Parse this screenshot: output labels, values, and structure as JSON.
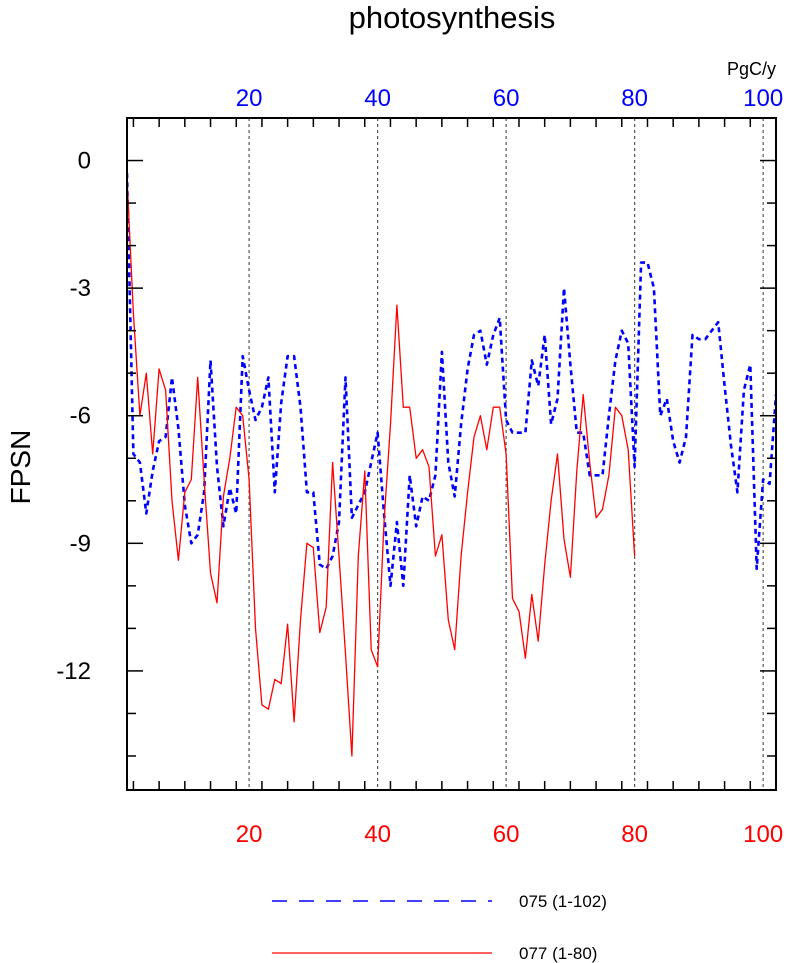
{
  "chart_data": {
    "type": "line",
    "title": "photosynthesis",
    "ylabel": "FPSN",
    "units": "PgC/y",
    "ylim": [
      -14.8,
      1.0
    ],
    "yticks": [
      0,
      -3,
      -6,
      -9,
      -12
    ],
    "yticklabels": [
      "0",
      "-3",
      "-6",
      "-9",
      "-12"
    ],
    "xlim": [
      1,
      102
    ],
    "xticks": [
      20,
      40,
      60,
      80,
      100
    ],
    "xticklabels": [
      "20",
      "40",
      "60",
      "80",
      "100"
    ],
    "grid": "vertical dotted at 20,40,60,80,100",
    "legend_position": "bottom",
    "series": [
      {
        "name": "075 (1-102)",
        "color": "#0000ff",
        "dash": "dashed",
        "axis": "top",
        "x": [
          1,
          2,
          3,
          4,
          5,
          6,
          7,
          8,
          9,
          10,
          11,
          12,
          13,
          14,
          15,
          16,
          17,
          18,
          19,
          20,
          21,
          22,
          23,
          24,
          25,
          26,
          27,
          28,
          29,
          30,
          31,
          32,
          33,
          34,
          35,
          36,
          37,
          38,
          39,
          40,
          41,
          42,
          43,
          44,
          45,
          46,
          47,
          48,
          49,
          50,
          51,
          52,
          53,
          54,
          55,
          56,
          57,
          58,
          59,
          60,
          61,
          62,
          63,
          64,
          65,
          66,
          67,
          68,
          69,
          70,
          71,
          72,
          73,
          74,
          75,
          76,
          77,
          78,
          79,
          80,
          81,
          82,
          83,
          84,
          85,
          86,
          87,
          88,
          89,
          90,
          91,
          92,
          93,
          94,
          95,
          96,
          97,
          98,
          99,
          100,
          101,
          102
        ],
        "values": [
          -0.3,
          -6.9,
          -7.1,
          -8.3,
          -7.3,
          -6.6,
          -6.5,
          -5.1,
          -6.3,
          -8.1,
          -9.0,
          -8.8,
          -7.8,
          -4.7,
          -7.2,
          -8.6,
          -7.7,
          -8.3,
          -4.6,
          -5.4,
          -6.1,
          -5.8,
          -5.1,
          -7.8,
          -5.7,
          -4.6,
          -4.6,
          -5.8,
          -7.8,
          -7.8,
          -9.5,
          -9.6,
          -9.3,
          -8.5,
          -5.1,
          -8.4,
          -8.1,
          -7.8,
          -7.1,
          -6.4,
          -8.3,
          -10.0,
          -8.5,
          -10.0,
          -7.4,
          -8.6,
          -7.9,
          -8.0,
          -7.4,
          -4.5,
          -7.1,
          -7.9,
          -6.2,
          -4.9,
          -4.1,
          -4.0,
          -4.8,
          -4.1,
          -3.7,
          -6.1,
          -6.4,
          -6.4,
          -6.4,
          -4.7,
          -5.3,
          -4.1,
          -6.2,
          -5.6,
          -3.0,
          -4.8,
          -6.4,
          -6.4,
          -7.4,
          -7.4,
          -7.4,
          -6.0,
          -4.7,
          -4.0,
          -4.3,
          -7.2,
          -2.4,
          -2.4,
          -3.0,
          -6.0,
          -5.6,
          -6.6,
          -7.1,
          -6.5,
          -4.1,
          -4.2,
          -4.2,
          -4.0,
          -3.8,
          -5.3,
          -6.7,
          -7.8,
          -5.4,
          -4.8,
          -9.6,
          -7.5,
          -7.6,
          -5.5
        ]
      },
      {
        "name": "077 (1-80)",
        "color": "#ff0000",
        "dash": "solid",
        "axis": "bottom",
        "x": [
          1,
          2,
          3,
          4,
          5,
          6,
          7,
          8,
          9,
          10,
          11,
          12,
          13,
          14,
          15,
          16,
          17,
          18,
          19,
          20,
          21,
          22,
          23,
          24,
          25,
          26,
          27,
          28,
          29,
          30,
          31,
          32,
          33,
          34,
          35,
          36,
          37,
          38,
          39,
          40,
          41,
          42,
          43,
          44,
          45,
          46,
          47,
          48,
          49,
          50,
          51,
          52,
          53,
          54,
          55,
          56,
          57,
          58,
          59,
          60,
          61,
          62,
          63,
          64,
          65,
          66,
          67,
          68,
          69,
          70,
          71,
          72,
          73,
          74,
          75,
          76,
          77,
          78,
          79,
          80
        ],
        "values": [
          -0.4,
          -3.6,
          -6.0,
          -5.0,
          -6.9,
          -4.9,
          -5.4,
          -8.0,
          -9.4,
          -7.8,
          -7.5,
          -5.1,
          -7.5,
          -9.7,
          -10.4,
          -7.9,
          -7.0,
          -5.8,
          -6.0,
          -7.5,
          -11.0,
          -12.8,
          -12.9,
          -12.2,
          -12.3,
          -10.9,
          -13.2,
          -10.8,
          -9.0,
          -9.1,
          -11.1,
          -10.5,
          -7.1,
          -9.3,
          -11.6,
          -14.0,
          -9.3,
          -7.3,
          -11.5,
          -11.9,
          -8.5,
          -6.2,
          -3.4,
          -5.8,
          -5.8,
          -7.0,
          -6.8,
          -7.2,
          -9.3,
          -8.8,
          -10.8,
          -11.5,
          -9.3,
          -7.8,
          -6.5,
          -6.0,
          -6.8,
          -5.8,
          -5.8,
          -6.9,
          -10.3,
          -10.6,
          -11.7,
          -10.2,
          -11.3,
          -9.5,
          -8.0,
          -6.9,
          -8.9,
          -9.8,
          -7.3,
          -5.5,
          -7.1,
          -8.4,
          -8.2,
          -7.4,
          -5.8,
          -6.0,
          -6.8,
          -9.3
        ]
      }
    ]
  }
}
